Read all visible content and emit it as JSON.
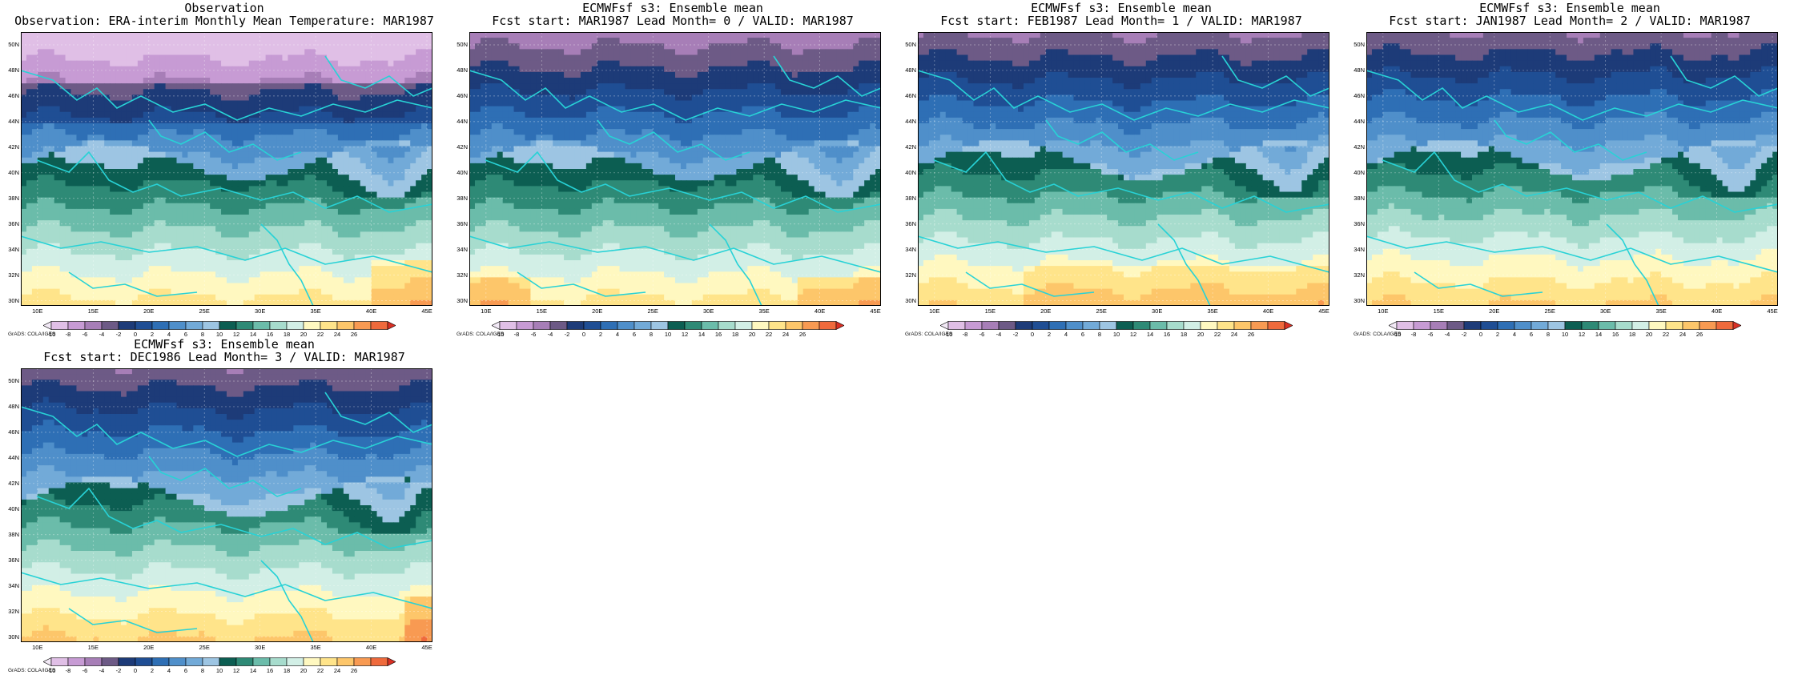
{
  "panels": [
    {
      "title": "Observation",
      "subtitle": "Observation: ERA-interim Monthly Mean Temperature: MAR1987",
      "variant": 0
    },
    {
      "title": "ECMWFsf s3: Ensemble mean",
      "subtitle": "Fcst start: MAR1987  Lead Month= 0 / VALID: MAR1987",
      "variant": 1
    },
    {
      "title": "ECMWFsf s3: Ensemble mean",
      "subtitle": "Fcst start: FEB1987  Lead Month= 1 / VALID: MAR1987",
      "variant": 2
    },
    {
      "title": "ECMWFsf s3: Ensemble mean",
      "subtitle": "Fcst start: JAN1987  Lead Month= 2 / VALID: MAR1987",
      "variant": 3
    },
    {
      "title": "ECMWFsf s3: Ensemble mean",
      "subtitle": "Fcst start: DEC1986  Lead Month= 3 / VALID: MAR1987",
      "variant": 4
    }
  ],
  "credit": "GrADS: COLA/IGES",
  "chart_data": {
    "type": "heatmap",
    "lat_ticks": [
      "30N",
      "32N",
      "34N",
      "36N",
      "38N",
      "40N",
      "42N",
      "44N",
      "46N",
      "48N",
      "50N"
    ],
    "lat_values": [
      30,
      32,
      34,
      36,
      38,
      40,
      42,
      44,
      46,
      48,
      50
    ],
    "lon_ticks": [
      "10E",
      "15E",
      "20E",
      "25E",
      "30E",
      "35E",
      "40E",
      "45E"
    ],
    "lon_values": [
      10,
      15,
      20,
      25,
      30,
      35,
      40,
      45
    ],
    "xlim": [
      8.5,
      45.5
    ],
    "ylim": [
      29.6,
      51.0
    ],
    "colorbar": {
      "tick_labels": [
        "-10",
        "-8",
        "-6",
        "-4",
        "-2",
        "0",
        "2",
        "4",
        "6",
        "8",
        "10",
        "12",
        "14",
        "16",
        "18",
        "20",
        "22",
        "24",
        "26"
      ],
      "levels": [
        -10,
        -8,
        -6,
        -4,
        -2,
        0,
        2,
        4,
        6,
        8,
        10,
        12,
        14,
        16,
        18,
        20,
        22,
        24,
        26
      ],
      "colors": [
        "#f2e9f6",
        "#e0bfe6",
        "#c79bd4",
        "#a77eb7",
        "#6d5a86",
        "#1d3b78",
        "#1f4e94",
        "#2e6fb5",
        "#4f8fca",
        "#72aad8",
        "#9dc5e3",
        "#0c5e52",
        "#2e8a76",
        "#6bbcaa",
        "#a7dccd",
        "#d2efe6",
        "#fff8c0",
        "#ffe48a",
        "#fdc66a",
        "#f89a52",
        "#ef6a3c",
        "#d93024"
      ]
    },
    "legend": "bottom"
  }
}
